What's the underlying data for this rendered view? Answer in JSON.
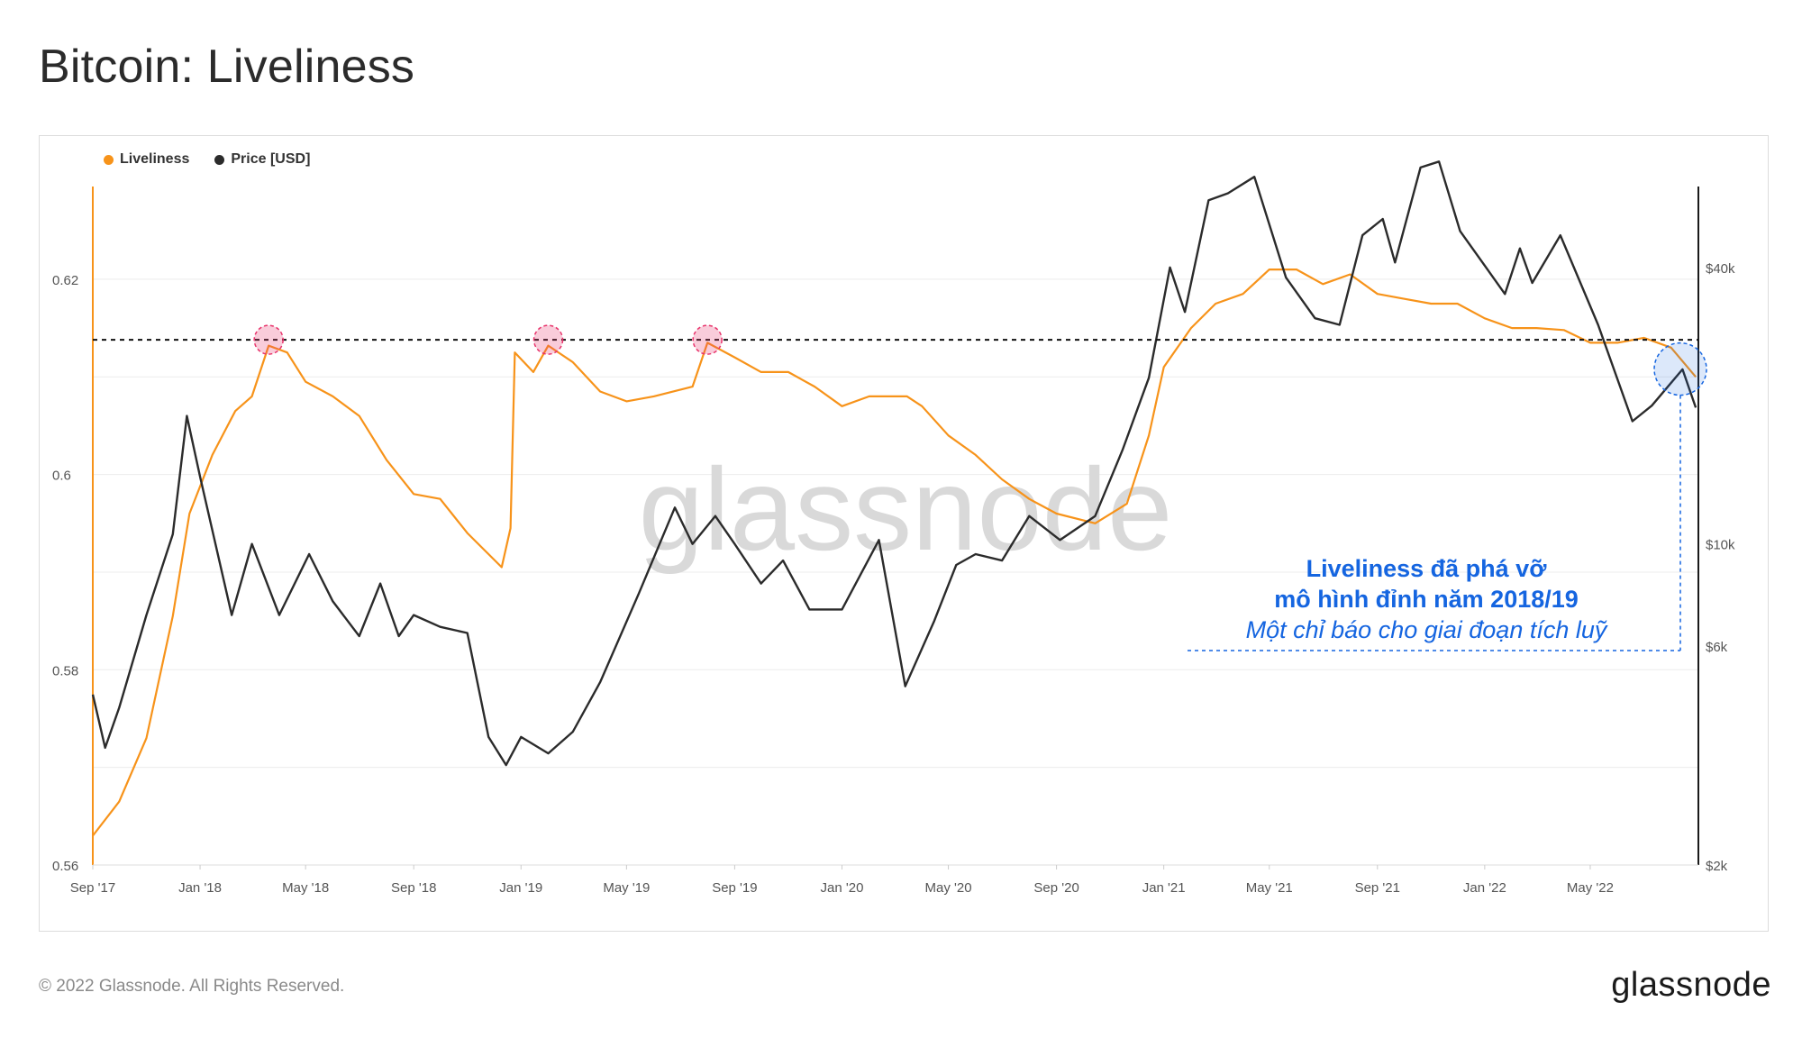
{
  "title": "Bitcoin: Liveliness",
  "footer": {
    "copyright": "© 2022 Glassnode. All Rights Reserved.",
    "brand": "glassnode"
  },
  "watermark": "glassnode",
  "colors": {
    "liveliness": "#f7931a",
    "price": "#2b2b2b",
    "annotation": "#1565e0",
    "peak_marker": "#e8336b"
  },
  "chart_data": {
    "type": "line",
    "x_ticks": [
      "Sep '17",
      "Jan '18",
      "May '18",
      "Sep '18",
      "Jan '19",
      "May '19",
      "Sep '19",
      "Jan '20",
      "May '20",
      "Sep '20",
      "Jan '21",
      "May '21",
      "Sep '21",
      "Jan '22",
      "May '22"
    ],
    "x_range": [
      "2017-09-01",
      "2022-09-01"
    ],
    "y_left": {
      "ticks": [
        "0.56",
        "0.58",
        "0.6",
        "0.62"
      ],
      "range": [
        0.56,
        0.6295
      ]
    },
    "y_right": {
      "scale": "log",
      "ticks": [
        "$2k",
        "$6k",
        "$10k",
        "$40k"
      ],
      "range": [
        2000,
        60000
      ]
    },
    "legend": [
      "Liveliness",
      "Price [USD]"
    ],
    "threshold": {
      "value": 0.6138,
      "style": "dashed"
    },
    "series": [
      {
        "name": "Liveliness",
        "axis": "left",
        "points": [
          [
            "2017-09-01",
            0.563
          ],
          [
            "2017-10-01",
            0.5665
          ],
          [
            "2017-11-01",
            0.573
          ],
          [
            "2017-12-01",
            0.5855
          ],
          [
            "2017-12-20",
            0.596
          ],
          [
            "2018-01-15",
            0.602
          ],
          [
            "2018-02-10",
            0.6065
          ],
          [
            "2018-03-01",
            0.608
          ],
          [
            "2018-03-20",
            0.6132
          ],
          [
            "2018-04-10",
            0.6125
          ],
          [
            "2018-05-01",
            0.6095
          ],
          [
            "2018-06-01",
            0.608
          ],
          [
            "2018-07-01",
            0.606
          ],
          [
            "2018-08-01",
            0.6015
          ],
          [
            "2018-09-01",
            0.598
          ],
          [
            "2018-10-01",
            0.5975
          ],
          [
            "2018-11-01",
            0.594
          ],
          [
            "2018-12-10",
            0.5905
          ],
          [
            "2018-12-20",
            0.5945
          ],
          [
            "2018-12-25",
            0.6125
          ],
          [
            "2019-01-15",
            0.6105
          ],
          [
            "2019-02-01",
            0.6132
          ],
          [
            "2019-03-01",
            0.6115
          ],
          [
            "2019-04-01",
            0.6085
          ],
          [
            "2019-05-01",
            0.6075
          ],
          [
            "2019-06-01",
            0.608
          ],
          [
            "2019-07-15",
            0.609
          ],
          [
            "2019-08-01",
            0.6135
          ],
          [
            "2019-09-01",
            0.612
          ],
          [
            "2019-10-01",
            0.6105
          ],
          [
            "2019-11-01",
            0.6105
          ],
          [
            "2019-12-01",
            0.609
          ],
          [
            "2020-01-01",
            0.607
          ],
          [
            "2020-02-01",
            0.608
          ],
          [
            "2020-03-15",
            0.608
          ],
          [
            "2020-04-01",
            0.607
          ],
          [
            "2020-05-01",
            0.604
          ],
          [
            "2020-06-01",
            0.602
          ],
          [
            "2020-07-01",
            0.5995
          ],
          [
            "2020-08-01",
            0.5975
          ],
          [
            "2020-09-01",
            0.596
          ],
          [
            "2020-10-15",
            0.595
          ],
          [
            "2020-11-20",
            0.597
          ],
          [
            "2020-12-15",
            0.604
          ],
          [
            "2021-01-01",
            0.611
          ],
          [
            "2021-02-01",
            0.615
          ],
          [
            "2021-03-01",
            0.6175
          ],
          [
            "2021-04-01",
            0.6185
          ],
          [
            "2021-05-01",
            0.621
          ],
          [
            "2021-06-01",
            0.621
          ],
          [
            "2021-07-01",
            0.6195
          ],
          [
            "2021-08-01",
            0.6205
          ],
          [
            "2021-09-01",
            0.6185
          ],
          [
            "2021-10-01",
            0.618
          ],
          [
            "2021-11-01",
            0.6175
          ],
          [
            "2021-12-01",
            0.6175
          ],
          [
            "2022-01-01",
            0.616
          ],
          [
            "2022-02-01",
            0.615
          ],
          [
            "2022-03-01",
            0.615
          ],
          [
            "2022-04-01",
            0.6148
          ],
          [
            "2022-05-01",
            0.6135
          ],
          [
            "2022-06-01",
            0.6135
          ],
          [
            "2022-07-01",
            0.614
          ],
          [
            "2022-08-01",
            0.613
          ],
          [
            "2022-08-29",
            0.61
          ]
        ]
      },
      {
        "name": "Price [USD]",
        "axis": "right",
        "points": [
          [
            "2017-09-01",
            4700
          ],
          [
            "2017-09-15",
            3600
          ],
          [
            "2017-10-01",
            4400
          ],
          [
            "2017-11-01",
            7000
          ],
          [
            "2017-12-01",
            10500
          ],
          [
            "2017-12-17",
            19000
          ],
          [
            "2018-01-01",
            14000
          ],
          [
            "2018-02-06",
            7000
          ],
          [
            "2018-03-01",
            10000
          ],
          [
            "2018-04-01",
            7000
          ],
          [
            "2018-05-05",
            9500
          ],
          [
            "2018-06-01",
            7500
          ],
          [
            "2018-07-01",
            6300
          ],
          [
            "2018-07-25",
            8200
          ],
          [
            "2018-08-15",
            6300
          ],
          [
            "2018-09-01",
            7000
          ],
          [
            "2018-10-01",
            6600
          ],
          [
            "2018-11-01",
            6400
          ],
          [
            "2018-11-25",
            3800
          ],
          [
            "2018-12-15",
            3300
          ],
          [
            "2019-01-01",
            3800
          ],
          [
            "2019-02-01",
            3500
          ],
          [
            "2019-03-01",
            3900
          ],
          [
            "2019-04-01",
            5000
          ],
          [
            "2019-05-15",
            7800
          ],
          [
            "2019-06-25",
            12000
          ],
          [
            "2019-07-15",
            10000
          ],
          [
            "2019-08-10",
            11500
          ],
          [
            "2019-09-01",
            10000
          ],
          [
            "2019-10-01",
            8200
          ],
          [
            "2019-10-26",
            9200
          ],
          [
            "2019-11-25",
            7200
          ],
          [
            "2020-01-01",
            7200
          ],
          [
            "2020-02-12",
            10200
          ],
          [
            "2020-03-13",
            4900
          ],
          [
            "2020-04-15",
            6800
          ],
          [
            "2020-05-10",
            9000
          ],
          [
            "2020-06-01",
            9500
          ],
          [
            "2020-07-01",
            9200
          ],
          [
            "2020-08-01",
            11500
          ],
          [
            "2020-09-05",
            10200
          ],
          [
            "2020-10-15",
            11500
          ],
          [
            "2020-11-15",
            16000
          ],
          [
            "2020-12-15",
            23000
          ],
          [
            "2021-01-08",
            40000
          ],
          [
            "2021-01-25",
            32000
          ],
          [
            "2021-02-21",
            56000
          ],
          [
            "2021-03-15",
            58000
          ],
          [
            "2021-04-14",
            63000
          ],
          [
            "2021-05-20",
            38000
          ],
          [
            "2021-06-22",
            31000
          ],
          [
            "2021-07-20",
            30000
          ],
          [
            "2021-08-15",
            47000
          ],
          [
            "2021-09-07",
            51000
          ],
          [
            "2021-09-21",
            41000
          ],
          [
            "2021-10-20",
            66000
          ],
          [
            "2021-11-10",
            68000
          ],
          [
            "2021-12-04",
            48000
          ],
          [
            "2022-01-24",
            35000
          ],
          [
            "2022-02-10",
            44000
          ],
          [
            "2022-02-24",
            37000
          ],
          [
            "2022-03-28",
            47000
          ],
          [
            "2022-05-10",
            30000
          ],
          [
            "2022-06-18",
            18500
          ],
          [
            "2022-07-10",
            20000
          ],
          [
            "2022-08-14",
            24000
          ],
          [
            "2022-08-29",
            19800
          ]
        ]
      }
    ],
    "annotation": {
      "line1": "Liveliness đã phá vỡ",
      "line2": "mô hình đỉnh năm 2018/19",
      "line3": "Một chỉ báo cho giai đoạn tích luỹ"
    }
  }
}
